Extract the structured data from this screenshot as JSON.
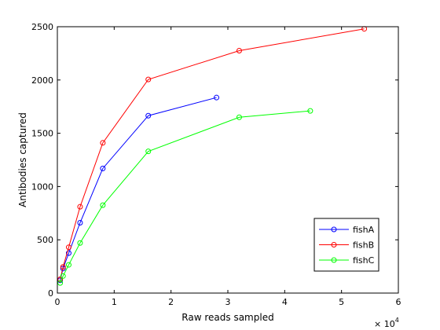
{
  "chart_data": {
    "type": "line",
    "xlabel": "Raw reads sampled",
    "ylabel": "Antibodies captured",
    "x_multiplier_label": "× 10",
    "x_multiplier_exponent": "4",
    "xlim": [
      0,
      6
    ],
    "ylim": [
      0,
      2500
    ],
    "xticks": [
      0,
      1,
      2,
      3,
      4,
      5,
      6
    ],
    "yticks": [
      0,
      500,
      1000,
      1500,
      2000,
      2500
    ],
    "grid": false,
    "legend_position": "bottom-right",
    "series": [
      {
        "name": "fishA",
        "color": "#0000ff",
        "x": [
          0.05,
          0.1,
          0.2,
          0.4,
          0.8,
          1.6,
          2.8
        ],
        "y": [
          120,
          230,
          375,
          660,
          1170,
          1665,
          1835
        ]
      },
      {
        "name": "fishB",
        "color": "#ff0000",
        "x": [
          0.05,
          0.1,
          0.2,
          0.4,
          0.8,
          1.6,
          3.2,
          5.4
        ],
        "y": [
          130,
          245,
          430,
          810,
          1410,
          2005,
          2275,
          2480
        ]
      },
      {
        "name": "fishC",
        "color": "#00ff00",
        "x": [
          0.05,
          0.1,
          0.2,
          0.4,
          0.8,
          1.6,
          3.2,
          4.45
        ],
        "y": [
          95,
          160,
          265,
          470,
          825,
          1330,
          1650,
          1710
        ]
      }
    ]
  }
}
